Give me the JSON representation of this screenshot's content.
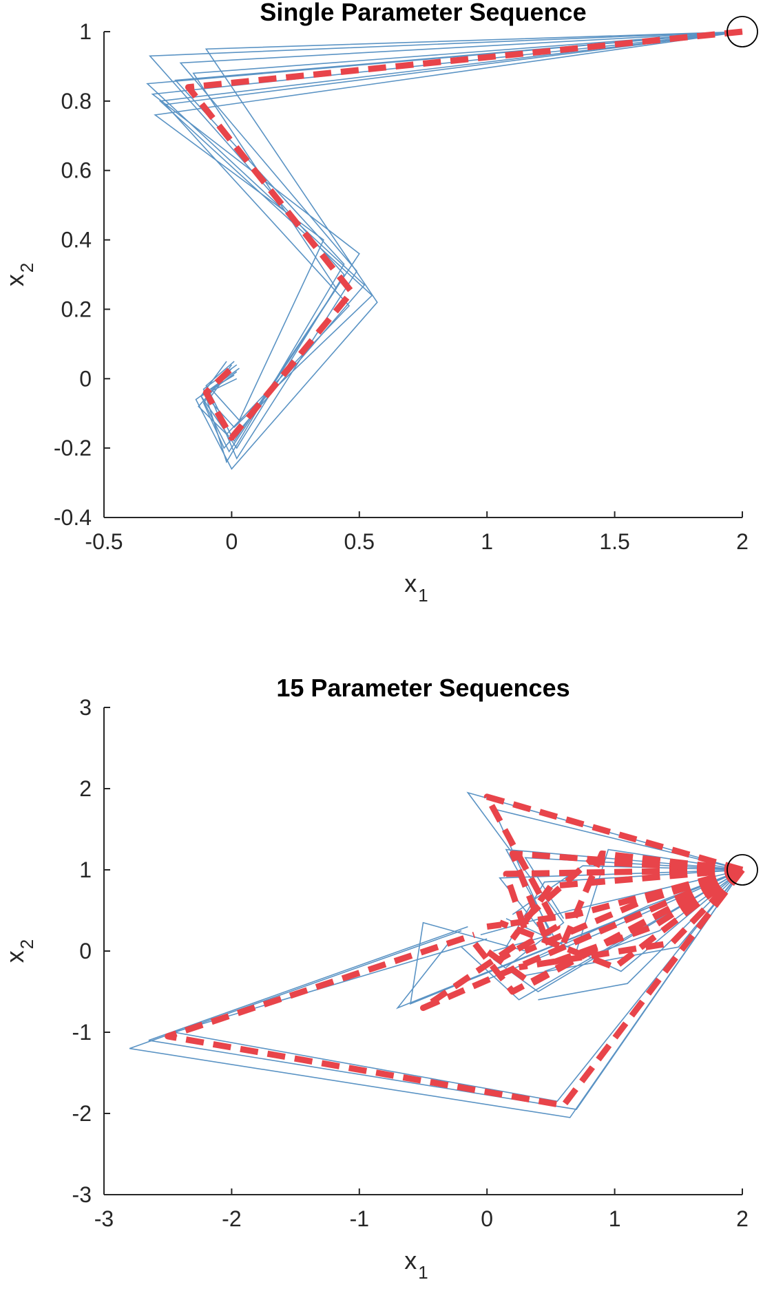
{
  "colors": {
    "trajectory": "#5a93c4",
    "mean": "#e8444a",
    "axis": "#262626",
    "marker": "#000000"
  },
  "chart_data": [
    {
      "type": "line",
      "title": "Single Parameter Sequence",
      "xlabel": "x",
      "xlabel_sub": "1",
      "ylabel": "x",
      "ylabel_sub": "2",
      "xlim": [
        -0.5,
        2
      ],
      "ylim": [
        -0.4,
        1
      ],
      "xticks": [
        -0.5,
        0,
        0.5,
        1,
        1.5,
        2
      ],
      "xtick_labels": [
        "-0.5",
        "0",
        "0.5",
        "1",
        "1.5",
        "2"
      ],
      "yticks": [
        -0.4,
        -0.2,
        0,
        0.2,
        0.4,
        0.6,
        0.8,
        1
      ],
      "ytick_labels": [
        "-0.4",
        "-0.2",
        "0",
        "0.2",
        "0.4",
        "0.6",
        "0.8",
        "1"
      ],
      "start_marker": [
        2,
        1
      ],
      "mean_path": [
        [
          2,
          1
        ],
        [
          -0.17,
          0.84
        ],
        [
          0.47,
          0.25
        ],
        [
          0.0,
          -0.17
        ],
        [
          -0.1,
          -0.04
        ],
        [
          0.0,
          0.03
        ]
      ],
      "trajectories": [
        [
          [
            2,
            1
          ],
          [
            -0.32,
            0.93
          ],
          [
            0.44,
            0.3
          ],
          [
            0.02,
            -0.2
          ],
          [
            -0.12,
            -0.05
          ],
          [
            -0.02,
            0.05
          ]
        ],
        [
          [
            2,
            1
          ],
          [
            -0.1,
            0.95
          ],
          [
            0.57,
            0.22
          ],
          [
            0.0,
            -0.26
          ],
          [
            -0.14,
            -0.06
          ],
          [
            0.03,
            0.03
          ]
        ],
        [
          [
            2,
            1
          ],
          [
            -0.3,
            0.76
          ],
          [
            0.36,
            0.4
          ],
          [
            0.03,
            -0.12
          ],
          [
            -0.08,
            -0.03
          ],
          [
            0.01,
            0.01
          ]
        ],
        [
          [
            2,
            1
          ],
          [
            -0.33,
            0.85
          ],
          [
            0.52,
            0.27
          ],
          [
            -0.03,
            -0.2
          ],
          [
            -0.11,
            -0.07
          ],
          [
            0.0,
            0.04
          ]
        ],
        [
          [
            2,
            1
          ],
          [
            -0.2,
            0.91
          ],
          [
            0.49,
            0.31
          ],
          [
            0.02,
            -0.23
          ],
          [
            -0.09,
            -0.04
          ],
          [
            0.02,
            0.02
          ]
        ],
        [
          [
            2,
            1
          ],
          [
            -0.26,
            0.79
          ],
          [
            0.46,
            0.21
          ],
          [
            -0.02,
            -0.16
          ],
          [
            -0.13,
            -0.08
          ],
          [
            -0.01,
            0.02
          ]
        ],
        [
          [
            2,
            1
          ],
          [
            -0.31,
            0.82
          ],
          [
            0.5,
            0.36
          ],
          [
            0.01,
            -0.18
          ],
          [
            -0.1,
            -0.02
          ],
          [
            0.01,
            0.05
          ]
        ],
        [
          [
            2,
            1
          ],
          [
            -0.15,
            0.88
          ],
          [
            0.41,
            0.26
          ],
          [
            -0.01,
            -0.21
          ],
          [
            -0.12,
            -0.05
          ],
          [
            0.02,
            0.0
          ]
        ],
        [
          [
            2,
            1
          ],
          [
            -0.28,
            0.8
          ],
          [
            0.55,
            0.24
          ],
          [
            0.01,
            -0.14
          ],
          [
            -0.09,
            -0.06
          ],
          [
            0.0,
            0.03
          ]
        ],
        [
          [
            2,
            1
          ],
          [
            -0.22,
            0.86
          ],
          [
            0.44,
            0.33
          ],
          [
            -0.02,
            -0.24
          ],
          [
            -0.11,
            -0.03
          ],
          [
            0.02,
            0.04
          ]
        ]
      ]
    },
    {
      "type": "line",
      "title": "15 Parameter Sequences",
      "xlabel": "x",
      "xlabel_sub": "1",
      "ylabel": "x",
      "ylabel_sub": "2",
      "xlim": [
        -3,
        2
      ],
      "ylim": [
        -3,
        3
      ],
      "xticks": [
        -3,
        -2,
        -1,
        0,
        1,
        2
      ],
      "xtick_labels": [
        "-3",
        "-2",
        "-1",
        "0",
        "1",
        "2"
      ],
      "yticks": [
        -3,
        -2,
        -1,
        0,
        1,
        2,
        3
      ],
      "ytick_labels": [
        "-3",
        "-2",
        "-1",
        "0",
        "1",
        "2",
        "3"
      ],
      "start_marker": [
        2,
        1
      ],
      "mean_paths": [
        [
          [
            2,
            1
          ],
          [
            0.0,
            1.9
          ],
          [
            0.55,
            0.3
          ],
          [
            0.1,
            -0.1
          ]
        ],
        [
          [
            2,
            1
          ],
          [
            0.2,
            1.2
          ],
          [
            0.45,
            0.2
          ]
        ],
        [
          [
            2,
            1
          ],
          [
            0.15,
            0.95
          ],
          [
            0.3,
            0.25
          ]
        ],
        [
          [
            2,
            1
          ],
          [
            0.9,
            1.2
          ],
          [
            0.6,
            0.1
          ]
        ],
        [
          [
            2,
            1
          ],
          [
            0.8,
            1.1
          ],
          [
            0.3,
            0.4
          ]
        ],
        [
          [
            2,
            1
          ],
          [
            1.2,
            0.6
          ],
          [
            0.3,
            0.0
          ]
        ],
        [
          [
            2,
            1
          ],
          [
            1.3,
            0.3
          ],
          [
            0.5,
            -0.15
          ]
        ],
        [
          [
            2,
            1
          ],
          [
            0.35,
            -0.4
          ],
          [
            0.0,
            0.0
          ]
        ],
        [
          [
            2,
            1
          ],
          [
            0.2,
            -0.5
          ],
          [
            -0.1,
            0.1
          ]
        ],
        [
          [
            2,
            1
          ],
          [
            -0.5,
            -0.7
          ],
          [
            0.25,
            0.1
          ]
        ],
        [
          [
            2,
            1
          ],
          [
            0.6,
            -1.9
          ],
          [
            -2.5,
            -1.05
          ],
          [
            -0.1,
            0.2
          ]
        ],
        [
          [
            2,
            1
          ],
          [
            1.0,
            -0.2
          ],
          [
            0.1,
            0.35
          ]
        ],
        [
          [
            2,
            1
          ],
          [
            1.45,
            0.1
          ],
          [
            0.25,
            -0.2
          ]
        ],
        [
          [
            2,
            1
          ],
          [
            0.7,
            0.45
          ],
          [
            0.0,
            0.3
          ]
        ],
        [
          [
            2,
            1
          ],
          [
            0.5,
            0.8
          ],
          [
            0.2,
            0.15
          ]
        ]
      ],
      "trajectories": [
        [
          [
            2,
            1
          ],
          [
            -0.15,
            1.95
          ],
          [
            0.6,
            0.35
          ],
          [
            0.15,
            -0.2
          ]
        ],
        [
          [
            2,
            1
          ],
          [
            0.05,
            1.75
          ],
          [
            0.5,
            0.2
          ],
          [
            0.05,
            0.0
          ]
        ],
        [
          [
            2,
            1
          ],
          [
            0.15,
            1.25
          ],
          [
            0.55,
            0.1
          ]
        ],
        [
          [
            2,
            1
          ],
          [
            0.1,
            0.9
          ],
          [
            0.4,
            0.3
          ]
        ],
        [
          [
            2,
            1
          ],
          [
            0.95,
            1.25
          ],
          [
            0.7,
            0.0
          ]
        ],
        [
          [
            2,
            1
          ],
          [
            0.75,
            1.05
          ],
          [
            0.2,
            0.45
          ]
        ],
        [
          [
            2,
            1
          ],
          [
            1.25,
            0.55
          ],
          [
            0.35,
            -0.1
          ]
        ],
        [
          [
            2,
            1
          ],
          [
            1.35,
            0.25
          ],
          [
            0.45,
            -0.25
          ]
        ],
        [
          [
            2,
            1
          ],
          [
            0.4,
            -0.5
          ],
          [
            0.05,
            -0.1
          ]
        ],
        [
          [
            2,
            1
          ],
          [
            0.25,
            -0.6
          ],
          [
            -0.2,
            0.05
          ]
        ],
        [
          [
            2,
            1
          ],
          [
            -0.6,
            -0.65
          ],
          [
            -0.5,
            0.35
          ],
          [
            0.3,
            0.0
          ]
        ],
        [
          [
            2,
            1
          ],
          [
            -0.7,
            -0.7
          ],
          [
            -0.3,
            0.1
          ]
        ],
        [
          [
            2,
            1
          ],
          [
            0.65,
            -2.05
          ],
          [
            -2.8,
            -1.2
          ],
          [
            -0.2,
            0.25
          ]
        ],
        [
          [
            2,
            1
          ],
          [
            0.55,
            -1.85
          ],
          [
            -2.45,
            -1.0
          ],
          [
            0.0,
            0.15
          ]
        ],
        [
          [
            2,
            1
          ],
          [
            0.7,
            -1.95
          ],
          [
            -2.65,
            -1.1
          ],
          [
            -0.15,
            0.3
          ]
        ],
        [
          [
            2,
            1
          ],
          [
            1.05,
            -0.25
          ],
          [
            0.15,
            0.4
          ]
        ],
        [
          [
            2,
            1
          ],
          [
            1.5,
            0.05
          ],
          [
            0.3,
            -0.3
          ]
        ],
        [
          [
            2,
            1
          ],
          [
            0.65,
            0.5
          ],
          [
            -0.05,
            0.2
          ]
        ],
        [
          [
            2,
            1
          ],
          [
            0.45,
            0.85
          ],
          [
            0.15,
            0.05
          ]
        ],
        [
          [
            2,
            1
          ],
          [
            1.1,
            -0.4
          ],
          [
            0.4,
            -0.6
          ]
        ],
        [
          [
            2,
            1
          ],
          [
            0.3,
            1.15
          ],
          [
            0.6,
            0.4
          ]
        ],
        [
          [
            2,
            1
          ],
          [
            0.85,
            0.2
          ],
          [
            0.0,
            -0.35
          ]
        ]
      ]
    }
  ]
}
